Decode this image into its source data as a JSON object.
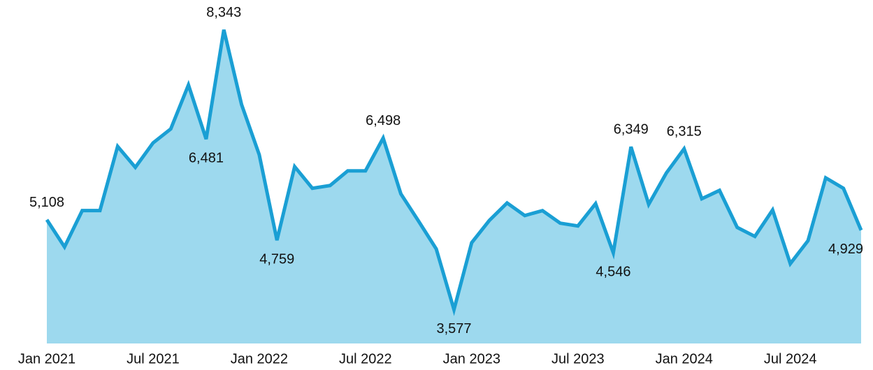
{
  "chart_data": {
    "type": "area",
    "categories": [
      "Jan 2021",
      null,
      null,
      null,
      null,
      null,
      "Jul 2021",
      null,
      null,
      null,
      null,
      null,
      "Jan 2022",
      null,
      null,
      null,
      null,
      null,
      "Jul 2022",
      null,
      null,
      null,
      null,
      null,
      "Jan 2023",
      null,
      null,
      null,
      null,
      null,
      "Jul 2023",
      null,
      null,
      null,
      null,
      null,
      "Jan 2024",
      null,
      null,
      null,
      null,
      null,
      "Jul 2024",
      null,
      null,
      null,
      null
    ],
    "values": [
      5108,
      4644,
      5263,
      5263,
      6356,
      6000,
      6416,
      6654,
      7403,
      6481,
      8343,
      7070,
      6214,
      4759,
      6012,
      5643,
      5690,
      5940,
      5940,
      6498,
      5548,
      5084,
      4609,
      3577,
      4716,
      5096,
      5393,
      5179,
      5263,
      5049,
      5001,
      5381,
      4546,
      6349,
      5370,
      5905,
      6315,
      5465,
      5607,
      4977,
      4823,
      5274,
      4359,
      4751,
      5821,
      5643,
      4929
    ],
    "value_labels": [
      "5,108",
      null,
      null,
      null,
      null,
      null,
      null,
      null,
      null,
      "6,481",
      "8,343",
      null,
      null,
      "4,759",
      null,
      null,
      null,
      null,
      null,
      "6,498",
      null,
      null,
      null,
      "3,577",
      null,
      null,
      null,
      null,
      null,
      null,
      null,
      null,
      "4,546",
      "6,349",
      null,
      null,
      "6,315",
      null,
      null,
      null,
      null,
      null,
      null,
      null,
      null,
      null,
      "4,929"
    ],
    "color": "#1a9fd4",
    "fill": "#9dd9ee",
    "ylim": [
      3000,
      8850
    ]
  }
}
